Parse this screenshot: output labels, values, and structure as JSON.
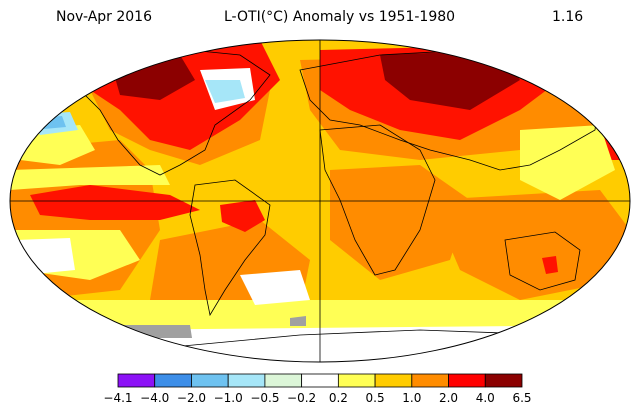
{
  "header": {
    "period": "Nov-Apr 2016",
    "title": "L-OTI(°C) Anomaly vs 1951-1980",
    "global_mean": "1.16"
  },
  "legend": {
    "tick_labels": [
      "−4.1",
      "−4.0",
      "−2.0",
      "−1.0",
      "−0.5",
      "−0.2",
      "0.2",
      "0.5",
      "1.0",
      "2.0",
      "4.0",
      "6.5"
    ],
    "colors": [
      "#8c12f6",
      "#3d8ee8",
      "#6ec2f0",
      "#a6e6f8",
      "#dcf6d8",
      "#ffffff",
      "#ffff55",
      "#ffcc00",
      "#ff8c00",
      "#ff0000",
      "#8b0000"
    ]
  },
  "palette": {
    "red": "#ff1200",
    "darkred": "#8c0000",
    "orange": "#ff8c00",
    "gold": "#ffcc00",
    "yellow": "#ffff55",
    "lightblue": "#a6e6f8",
    "skyblue": "#6ec2f0",
    "gray": "#a0a0a0",
    "white": "#ffffff"
  }
}
